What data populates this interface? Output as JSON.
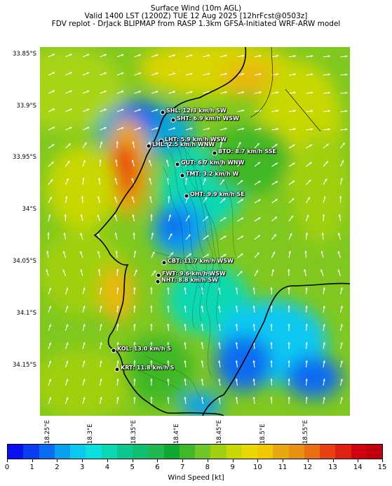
{
  "header": {
    "line1": "Surface Wind (10m AGL)",
    "line2": "Valid 1400 LST (1200Z) TUE 12 Aug 2025 [12hrFcst@0503z]",
    "line3": "FDV replot - DrJack BLIPMAP from RASP 1.3km GFSA-Initiated WRF-ARW model"
  },
  "axes": {
    "lat_labels": [
      "33.85°S",
      "33.9°S",
      "33.95°S",
      "34°S",
      "34.05°S",
      "34.1°S",
      "34.15°S"
    ],
    "lon_labels": [
      "18.25°E",
      "18.3°E",
      "18.35°E",
      "18.4°E",
      "18.45°E",
      "18.5°E",
      "18.55°E"
    ]
  },
  "stations": [
    {
      "code": "SHL",
      "label": "SHL: 12.3 km/h SW"
    },
    {
      "code": "SHT",
      "label": "SHT: 6.9 km/h WSW"
    },
    {
      "code": "LHT",
      "label": "LHT: 5.9 km/h WSW"
    },
    {
      "code": "LHL",
      "label": "LHL: 2.5 km/h WNW"
    },
    {
      "code": "BTO",
      "label": "BTO: 8.7 km/h SSE"
    },
    {
      "code": "GUT",
      "label": "GUT: 6.7 km/h WNW"
    },
    {
      "code": "TMT",
      "label": "TMT: 3.2 km/h W"
    },
    {
      "code": "OHT",
      "label": "OHT: 9.9 km/h SE"
    },
    {
      "code": "CBT",
      "label": "CBT: 11.7 km/h WSW"
    },
    {
      "code": "FWT",
      "label": "FWT: 9.6 km/h WSW"
    },
    {
      "code": "NHT",
      "label": "NHT: 8.8 km/h SW"
    },
    {
      "code": "KOL",
      "label": "KOL: 13.0 km/h S"
    },
    {
      "code": "KRT",
      "label": "KRT: 11.8 km/h S"
    }
  ],
  "colorbar": {
    "label": "Wind Speed [kt]",
    "ticks": [
      "0",
      "1",
      "2",
      "3",
      "4",
      "5",
      "6",
      "7",
      "8",
      "9",
      "10",
      "11",
      "12",
      "13",
      "14",
      "15"
    ],
    "colors": [
      "#0a0ff0",
      "#0a3cf0",
      "#0a6cf0",
      "#0aa0f0",
      "#0ac8f0",
      "#0ae0e0",
      "#0ad8b0",
      "#0ac890",
      "#10c070",
      "#20b850",
      "#10a830",
      "#40b828",
      "#70c828",
      "#a0d010",
      "#c8d800",
      "#e8d800",
      "#f0c800",
      "#e8a810",
      "#e89010",
      "#e87010",
      "#e84010",
      "#e02010",
      "#d00010",
      "#c00010"
    ],
    "range": [
      0,
      15
    ]
  },
  "chart_data": {
    "type": "heatmap",
    "variable": "Wind Speed",
    "units": "kt",
    "range": [
      0,
      15
    ],
    "lat_ticks": [
      "33.85°S",
      "33.9°S",
      "33.95°S",
      "34°S",
      "34.05°S",
      "34.1°S",
      "34.15°S"
    ],
    "lon_ticks": [
      "18.25°E",
      "18.3°E",
      "18.35°E",
      "18.4°E",
      "18.45°E",
      "18.5°E",
      "18.55°E"
    ],
    "station_obs_kmh": [
      {
        "code": "SHL",
        "speed": 12.3,
        "dir": "SW"
      },
      {
        "code": "SHT",
        "speed": 6.9,
        "dir": "WSW"
      },
      {
        "code": "LHT",
        "speed": 5.9,
        "dir": "WSW"
      },
      {
        "code": "LHL",
        "speed": 2.5,
        "dir": "WNW"
      },
      {
        "code": "BTO",
        "speed": 8.7,
        "dir": "SSE"
      },
      {
        "code": "GUT",
        "speed": 6.7,
        "dir": "WNW"
      },
      {
        "code": "TMT",
        "speed": 3.2,
        "dir": "W"
      },
      {
        "code": "OHT",
        "speed": 9.9,
        "dir": "SE"
      },
      {
        "code": "CBT",
        "speed": 11.7,
        "dir": "WSW"
      },
      {
        "code": "FWT",
        "speed": 9.6,
        "dir": "WSW"
      },
      {
        "code": "NHT",
        "speed": 8.8,
        "dir": "SW"
      },
      {
        "code": "KOL",
        "speed": 13.0,
        "dir": "S"
      },
      {
        "code": "KRT",
        "speed": 11.8,
        "dir": "S"
      }
    ]
  }
}
